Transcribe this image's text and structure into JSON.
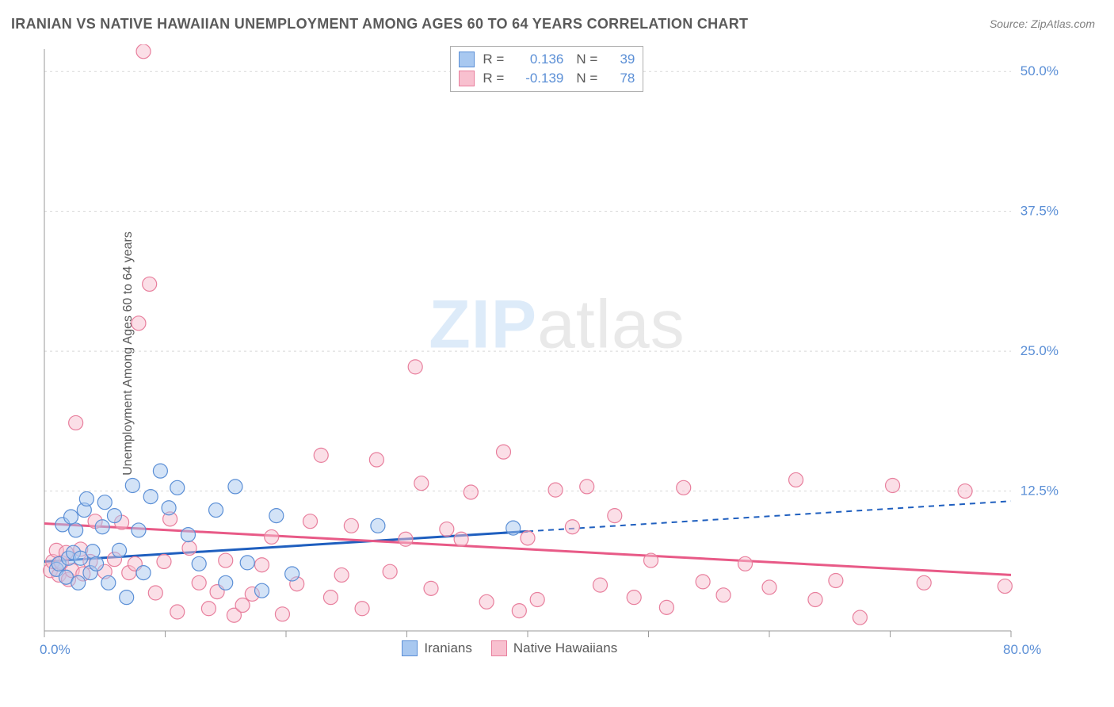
{
  "title": "IRANIAN VS NATIVE HAWAIIAN UNEMPLOYMENT AMONG AGES 60 TO 64 YEARS CORRELATION CHART",
  "source": "Source: ZipAtlas.com",
  "y_axis_label": "Unemployment Among Ages 60 to 64 years",
  "watermark": {
    "zip": "ZIP",
    "atlas": "atlas"
  },
  "chart": {
    "type": "scatter",
    "xlim": [
      0,
      80
    ],
    "ylim": [
      0,
      52
    ],
    "x_ticks": [
      0,
      10,
      20,
      30,
      40,
      50,
      60,
      70,
      80
    ],
    "y_gridlines": [
      12.5,
      25.0,
      37.5,
      50.0
    ],
    "y_tick_labels": [
      "12.5%",
      "25.0%",
      "37.5%",
      "50.0%"
    ],
    "x_axis_start_label": "0.0%",
    "x_axis_end_label": "80.0%",
    "grid_color": "#d8d8d8",
    "axis_color": "#9a9a9a",
    "background": "#ffffff",
    "marker_radius": 9,
    "marker_opacity": 0.5,
    "tick_label_color": "#5b8fd6",
    "series": [
      {
        "name": "Iranians",
        "color_fill": "#a8c8f0",
        "color_stroke": "#5b8fd6",
        "R": "0.136",
        "N": "39",
        "trend": {
          "y_at_x0": 6.2,
          "y_at_x80": 11.6,
          "solid_until_x": 40,
          "color": "#1f5fbf",
          "width": 3
        },
        "points": [
          [
            1,
            5.5
          ],
          [
            1.2,
            6.0
          ],
          [
            1.5,
            9.5
          ],
          [
            1.8,
            4.8
          ],
          [
            2,
            6.5
          ],
          [
            2.2,
            10.2
          ],
          [
            2.4,
            7.0
          ],
          [
            2.6,
            9.0
          ],
          [
            2.8,
            4.3
          ],
          [
            3,
            6.5
          ],
          [
            3.3,
            10.8
          ],
          [
            3.5,
            11.8
          ],
          [
            3.8,
            5.2
          ],
          [
            4,
            7.1
          ],
          [
            4.3,
            6.0
          ],
          [
            4.8,
            9.3
          ],
          [
            5,
            11.5
          ],
          [
            5.3,
            4.3
          ],
          [
            5.8,
            10.3
          ],
          [
            6.2,
            7.2
          ],
          [
            6.8,
            3.0
          ],
          [
            7.3,
            13.0
          ],
          [
            7.8,
            9.0
          ],
          [
            8.2,
            5.2
          ],
          [
            8.8,
            12.0
          ],
          [
            9.6,
            14.3
          ],
          [
            10.3,
            11.0
          ],
          [
            11,
            12.8
          ],
          [
            11.9,
            8.6
          ],
          [
            12.8,
            6.0
          ],
          [
            14.2,
            10.8
          ],
          [
            15.0,
            4.3
          ],
          [
            15.8,
            12.9
          ],
          [
            16.8,
            6.1
          ],
          [
            18.0,
            3.6
          ],
          [
            19.2,
            10.3
          ],
          [
            20.5,
            5.1
          ],
          [
            27.6,
            9.4
          ],
          [
            38.8,
            9.2
          ]
        ]
      },
      {
        "name": "Native Hawaiians",
        "color_fill": "#f8c0cf",
        "color_stroke": "#e87f9d",
        "R": "-0.139",
        "N": "78",
        "trend": {
          "y_at_x0": 9.6,
          "y_at_x80": 5.0,
          "solid_until_x": 80,
          "color": "#e85a87",
          "width": 3
        },
        "points": [
          [
            0.5,
            5.4
          ],
          [
            0.7,
            6.2
          ],
          [
            1,
            7.2
          ],
          [
            1.2,
            5.0
          ],
          [
            1.4,
            6.1
          ],
          [
            1.8,
            7.0
          ],
          [
            2,
            4.6
          ],
          [
            2.3,
            5.4
          ],
          [
            2.6,
            18.6
          ],
          [
            3,
            7.3
          ],
          [
            3.2,
            5.1
          ],
          [
            3.8,
            6.2
          ],
          [
            4.2,
            9.8
          ],
          [
            5,
            5.3
          ],
          [
            5.8,
            6.4
          ],
          [
            6.4,
            9.7
          ],
          [
            7,
            5.2
          ],
          [
            7.5,
            6.0
          ],
          [
            7.8,
            27.5
          ],
          [
            8.2,
            51.8
          ],
          [
            8.7,
            31.0
          ],
          [
            9.2,
            3.4
          ],
          [
            9.9,
            6.2
          ],
          [
            10.4,
            10.0
          ],
          [
            11,
            1.7
          ],
          [
            12,
            7.4
          ],
          [
            12.8,
            4.3
          ],
          [
            13.6,
            2.0
          ],
          [
            14.3,
            3.5
          ],
          [
            15,
            6.3
          ],
          [
            15.7,
            1.4
          ],
          [
            16.4,
            2.3
          ],
          [
            17.2,
            3.3
          ],
          [
            18.0,
            5.9
          ],
          [
            18.8,
            8.4
          ],
          [
            19.7,
            1.5
          ],
          [
            20.9,
            4.2
          ],
          [
            22.0,
            9.8
          ],
          [
            22.9,
            15.7
          ],
          [
            23.7,
            3.0
          ],
          [
            24.6,
            5.0
          ],
          [
            25.4,
            9.4
          ],
          [
            26.3,
            2.0
          ],
          [
            27.5,
            15.3
          ],
          [
            28.6,
            5.3
          ],
          [
            29.9,
            8.2
          ],
          [
            30.7,
            23.6
          ],
          [
            31.2,
            13.2
          ],
          [
            32.0,
            3.8
          ],
          [
            33.3,
            9.1
          ],
          [
            34.5,
            8.2
          ],
          [
            35.3,
            12.4
          ],
          [
            36.6,
            2.6
          ],
          [
            38.0,
            16.0
          ],
          [
            39.3,
            1.8
          ],
          [
            40.0,
            8.3
          ],
          [
            40.8,
            2.8
          ],
          [
            42.3,
            12.6
          ],
          [
            43.7,
            9.3
          ],
          [
            44.9,
            12.9
          ],
          [
            46.0,
            4.1
          ],
          [
            47.2,
            10.3
          ],
          [
            48.8,
            3.0
          ],
          [
            50.2,
            6.3
          ],
          [
            51.5,
            2.1
          ],
          [
            52.9,
            12.8
          ],
          [
            54.5,
            4.4
          ],
          [
            56.2,
            3.2
          ],
          [
            58.0,
            6.0
          ],
          [
            60.0,
            3.9
          ],
          [
            62.2,
            13.5
          ],
          [
            63.8,
            2.8
          ],
          [
            65.5,
            4.5
          ],
          [
            67.5,
            1.2
          ],
          [
            70.2,
            13.0
          ],
          [
            72.8,
            4.3
          ],
          [
            76.2,
            12.5
          ],
          [
            79.5,
            4.0
          ]
        ]
      }
    ]
  },
  "top_legend": {
    "R_label": "R  =",
    "N_label": "N  ="
  },
  "bottom_legend": {
    "items": [
      "Iranians",
      "Native Hawaiians"
    ]
  }
}
